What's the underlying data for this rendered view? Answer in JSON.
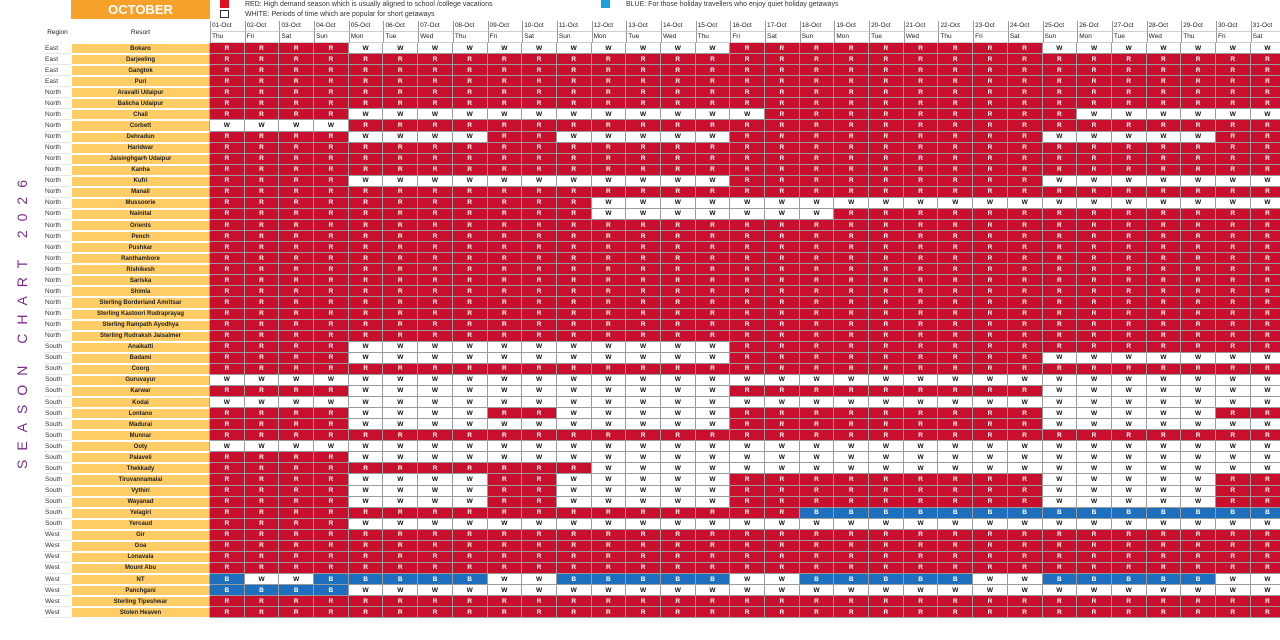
{
  "title_vertical": "SEASON CHART 2026",
  "month": "OCTOBER",
  "legend": {
    "red": {
      "text": "RED: High demand season which is usually aligned to school /college vacations",
      "color": "#e0101f"
    },
    "white": {
      "text": "WHITE: Periods of time which are popular for short getaways",
      "color": "#ffffff"
    },
    "blue": {
      "text": "BLUE: For those holiday travellers who enjoy quiet holiday getaways",
      "color": "#1ba1e2"
    }
  },
  "colors": {
    "R": "#c8102e",
    "W": "#ffffff",
    "B": "#1f6fbf",
    "resort_bg": "#ffcc66",
    "month_bg": "#f5a12a",
    "title": "#7b2d8e"
  },
  "headers": {
    "region": "Region",
    "resort": "Resort"
  },
  "dates": [
    "01-Oct",
    "02-Oct",
    "03-Oct",
    "04-Oct",
    "05-Oct",
    "06-Oct",
    "07-Oct",
    "08-Oct",
    "09-Oct",
    "10-Oct",
    "11-Oct",
    "12-Oct",
    "13-Oct",
    "14-Oct",
    "15-Oct",
    "16-Oct",
    "17-Oct",
    "18-Oct",
    "19-Oct",
    "20-Oct",
    "21-Oct",
    "22-Oct",
    "23-Oct",
    "24-Oct",
    "25-Oct",
    "26-Oct",
    "27-Oct",
    "28-Oct",
    "29-Oct",
    "30-Oct",
    "31-Oct"
  ],
  "days": [
    "Thu",
    "Fri",
    "Sat",
    "Sun",
    "Mon",
    "Tue",
    "Wed",
    "Thu",
    "Fri",
    "Sat",
    "Sun",
    "Mon",
    "Tue",
    "Wed",
    "Thu",
    "Fri",
    "Sat",
    "Sun",
    "Mon",
    "Tue",
    "Wed",
    "Thu",
    "Fri",
    "Sat",
    "Sun",
    "Mon",
    "Tue",
    "Wed",
    "Thu",
    "Fri",
    "Sat"
  ],
  "rows": [
    {
      "region": "East",
      "resort": "Bokaro",
      "s": "RRRRWWWWWWWWWWWRRRRRRRRRWWWWWWW"
    },
    {
      "region": "East",
      "resort": "Darjeeling",
      "s": "RRRRRRRRRRRRRRRRRRRRRRRRRRRRRRR"
    },
    {
      "region": "East",
      "resort": "Gangtok",
      "s": "RRRRRRRRRRRRRRRRRRRRRRRRRRRRRRR"
    },
    {
      "region": "East",
      "resort": "Puri",
      "s": "RRRRRRRRRRRRRRRRRRRRRRRRRRRRRRR"
    },
    {
      "region": "North",
      "resort": "Aravalli Udaipur",
      "s": "RRRRRRRRRRRRRRRRRRRRRRRRRRRRRRR"
    },
    {
      "region": "North",
      "resort": "Balicha Udaipur",
      "s": "RRRRRRRRRRRRRRRRRRRRRRRRRRRRRRR"
    },
    {
      "region": "North",
      "resort": "Chail",
      "s": "RRRRWWWWWWWWWWWWRRRRRRRRRWWWWWW"
    },
    {
      "region": "North",
      "resort": "Corbett",
      "s": "WWWWRRRRRRRRRRRRRRRRRRRRRRRRRRR"
    },
    {
      "region": "North",
      "resort": "Dehradun",
      "s": "RRRRWWWWRRWWWWWRRRRRRRRRWWWWWRR"
    },
    {
      "region": "North",
      "resort": "Haridwar",
      "s": "RRRRRRRRRRRRRRRRRRRRRRRRRRRRRRR"
    },
    {
      "region": "North",
      "resort": "Jaisinghgarh Udaipur",
      "s": "RRRRRRRRRRRRRRRRRRRRRRRRRRRRRRR"
    },
    {
      "region": "North",
      "resort": "Kanha",
      "s": "RRRRRRRRRRRRRRRRRRRRRRRRRRRRRRR"
    },
    {
      "region": "North",
      "resort": "Kufri",
      "s": "RRRRWWWWWWWWWWWRRRRRRRRRWWWWWWW"
    },
    {
      "region": "North",
      "resort": "Manali",
      "s": "RRRRRRRRRRRRRRRRRRRRRRRRRRRRRRR"
    },
    {
      "region": "North",
      "resort": "Mussoorie",
      "s": "RRRRRRRRRRRWWWWWWWWWWWWWWWWWWWW"
    },
    {
      "region": "North",
      "resort": "Nainital",
      "s": "RRRRRRRRRRRWWWWWWWRRRRRRRRRRRRR"
    },
    {
      "region": "North",
      "resort": "Orients",
      "s": "RRRRRRRRRRRRRRRRRRRRRRRRRRRRRRR"
    },
    {
      "region": "North",
      "resort": "Pench",
      "s": "RRRRRRRRRRRRRRRRRRRRRRRRRRRRRRR"
    },
    {
      "region": "North",
      "resort": "Pushkar",
      "s": "RRRRRRRRRRRRRRRRRRRRRRRRRRRRRRR"
    },
    {
      "region": "North",
      "resort": "Ranthambore",
      "s": "RRRRRRRRRRRRRRRRRRRRRRRRRRRRRRR"
    },
    {
      "region": "North",
      "resort": "Rishikesh",
      "s": "RRRRRRRRRRRRRRRRRRRRRRRRRRRRRRR"
    },
    {
      "region": "North",
      "resort": "Sariska",
      "s": "RRRRRRRRRRRRRRRRRRRRRRRRRRRRRRR"
    },
    {
      "region": "North",
      "resort": "Shimla",
      "s": "RRRRRRRRRRRRRRRRRRRRRRRRRRRRRRR"
    },
    {
      "region": "North",
      "resort": "Sterling Borderland Amritsar",
      "s": "RRRRRRRRRRRRRRRRRRRRRRRRRRRRRRR"
    },
    {
      "region": "North",
      "resort": "Sterling Kastoori Rudraprayag",
      "s": "RRRRRRRRRRRRRRRRRRRRRRRRRRRRRRR"
    },
    {
      "region": "North",
      "resort": "Sterling Rampath Ayodhya",
      "s": "RRRRRRRRRRRRRRRRRRRRRRRRRRRRRRR"
    },
    {
      "region": "North",
      "resort": "Sterling Rudraksh Jaisalmer",
      "s": "RRRRRRRRRRRRRRRRRRRRRRRRRRRRRRR"
    },
    {
      "region": "South",
      "resort": "Anaikatti",
      "s": "RRRRWWWWWWWWWWWRRRRRRRRRRRRRRRR"
    },
    {
      "region": "South",
      "resort": "Badami",
      "s": "RRRRWWWWWWWWWWWRRRRRRRRRWWWWWWW"
    },
    {
      "region": "South",
      "resort": "Coorg",
      "s": "RRRRRRRRRRRRRRRRRRRRRRRRRRRRRRR"
    },
    {
      "region": "South",
      "resort": "Guruvayur",
      "s": "WWWWWWWWWWWWWWWWWWWWWWWWWWWWWWW"
    },
    {
      "region": "South",
      "resort": "Karwar",
      "s": "RRRRWWWWWWWWWWWRRRRRRRRRWWWWWWW"
    },
    {
      "region": "South",
      "resort": "Kodai",
      "s": "WWWWWWWWWWWWWWWWWWWWWWWWWWWWWWW"
    },
    {
      "region": "South",
      "resort": "Lontano",
      "s": "RRRRWWWWRRWWWWWRRRRRRRRRWWWWWRR"
    },
    {
      "region": "South",
      "resort": "Madurai",
      "s": "RRRRWWWWWWWWWWWRRRRRRRRRWWWWWWW"
    },
    {
      "region": "South",
      "resort": "Munnar",
      "s": "RRRRRRRRRRRRRRRRRRRRRRRRRRRRRRR"
    },
    {
      "region": "South",
      "resort": "Ooty",
      "s": "WWWWWWWWWWWWWWWWWWWWWWWWWWWWWWW"
    },
    {
      "region": "South",
      "resort": "Palaveli",
      "s": "RRRRWWWWWWWWWWWWWWWWWWWWWWWWWWW"
    },
    {
      "region": "South",
      "resort": "Thekkady",
      "s": "RRRRRRRRRRRWWWWWWWWWWWWWWWWWWWW"
    },
    {
      "region": "South",
      "resort": "Tiruvannamalai",
      "s": "RRRRWWWWRRWWWWWRRRRRRRRRWWWWWRR"
    },
    {
      "region": "South",
      "resort": "Vythiri",
      "s": "RRRRWWWWRRWWWWWRRRRRRRRRWWWWWRR"
    },
    {
      "region": "South",
      "resort": "Wayanad",
      "s": "RRRRWWWWRRWWWWWRRRRRRRRRWWWWWRR"
    },
    {
      "region": "South",
      "resort": "Yelagiri",
      "s": "RRRRRRRRRRRRRRRRRBBBBBBBBBBBBBB"
    },
    {
      "region": "South",
      "resort": "Yercaud",
      "s": "RRRRWWWWWWWWWWWWWWWWWWWWWWWWWWW"
    },
    {
      "region": "West",
      "resort": "Gir",
      "s": "RRRRRRRRRRRRRRRRRRRRRRRRRRRRRRR"
    },
    {
      "region": "West",
      "resort": "Goa",
      "s": "RRRRRRRRRRRRRRRRRRRRRRRRRRRRRRR"
    },
    {
      "region": "West",
      "resort": "Lonavala",
      "s": "RRRRRRRRRRRRRRRRRRRRRRRRRRRRRRR"
    },
    {
      "region": "West",
      "resort": "Mount Abu",
      "s": "RRRRRRRRRRRRRRRRRRRRRRRRRRRRRRR"
    },
    {
      "region": "West",
      "resort": "NT",
      "s": "BWWBBBBBWWBBBBBWWBBBBBWWBBBBBWW"
    },
    {
      "region": "West",
      "resort": "Panchgani",
      "s": "BBBBWWWWWWWWWWWWWWWWWWWWWWWWWWW"
    },
    {
      "region": "West",
      "resort": "Sterling Tipeshwar",
      "s": "RRRRRRRRRRRRRRRRRRRRRRRRRRRRRRR"
    },
    {
      "region": "West",
      "resort": "Stolen Heaven",
      "s": "RRRRRRRRRRRRRRRRRRRRRRRRRRRRRRR"
    }
  ]
}
